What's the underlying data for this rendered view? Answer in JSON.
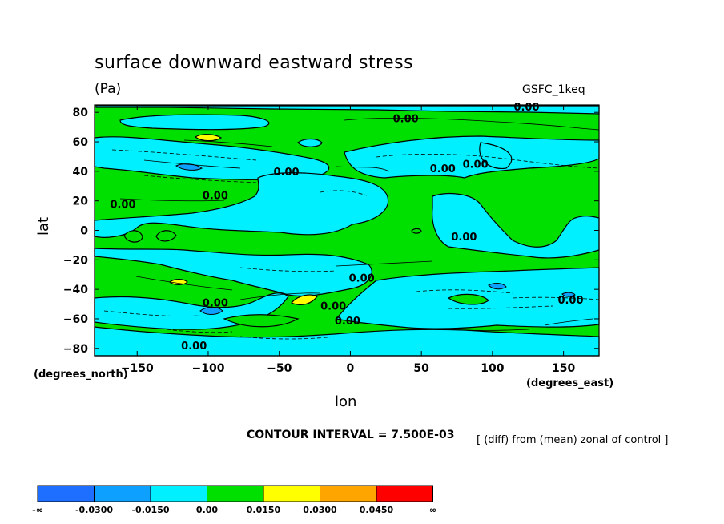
{
  "chart_data": {
    "type": "heatmap",
    "title": "surface downward eastward stress",
    "units": "(Pa)",
    "dataset": "GSFC_1keq",
    "xlabel": "lon",
    "ylabel": "lat",
    "x_units": "(degrees_east)",
    "y_units": "(degrees_north)",
    "xlim": [
      -180,
      175
    ],
    "ylim": [
      -85,
      85
    ],
    "x_ticks": [
      -150,
      -100,
      -50,
      0,
      50,
      100,
      150
    ],
    "y_ticks": [
      80,
      60,
      40,
      20,
      0,
      -20,
      -40,
      -60,
      -80
    ],
    "contour_interval": "CONTOUR INTERVAL = 7.500E-03",
    "annotation": "[ (diff) from (mean) zonal of control ]",
    "colorbar": {
      "labels": [
        "-∞",
        "-0.0300",
        "-0.0150",
        "0.00",
        "0.0150",
        "0.0300",
        "0.0450",
        "∞"
      ],
      "colors": [
        "#1e6eff",
        "#0ea0ff",
        "#00f0ff",
        "#00e000",
        "#ffff00",
        "#ffa500",
        "#ff0000"
      ]
    },
    "contour_labels": [
      {
        "text": "0.00",
        "x": 39,
        "y": 76
      },
      {
        "text": "0.00",
        "x": 65,
        "y": 42
      },
      {
        "text": "0.00",
        "x": -95,
        "y": 24
      },
      {
        "text": "0.00",
        "x": -160,
        "y": 18
      },
      {
        "text": "0.00",
        "x": 88,
        "y": 45
      },
      {
        "text": "0.00",
        "x": -45,
        "y": 40
      },
      {
        "text": "0.00",
        "x": 124,
        "y": 84
      },
      {
        "text": "0.00",
        "x": 80,
        "y": -4
      },
      {
        "text": "0.00",
        "x": 8,
        "y": -32
      },
      {
        "text": "0.00",
        "x": -95,
        "y": -49
      },
      {
        "text": "0.00",
        "x": -12,
        "y": -51
      },
      {
        "text": "0.00",
        "x": -2,
        "y": -61
      },
      {
        "text": "0.00",
        "x": 155,
        "y": -47
      },
      {
        "text": "0.00",
        "x": -110,
        "y": -78
      }
    ]
  }
}
